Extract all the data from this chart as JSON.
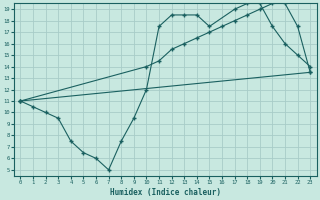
{
  "background_color": "#c8e8e0",
  "grid_color": "#a8ccc8",
  "line_color": "#1a6060",
  "xlabel": "Humidex (Indice chaleur)",
  "xlim": [
    -0.5,
    23.5
  ],
  "ylim": [
    4.5,
    19.5
  ],
  "xticks": [
    0,
    1,
    2,
    3,
    4,
    5,
    6,
    7,
    8,
    9,
    10,
    11,
    12,
    13,
    14,
    15,
    16,
    17,
    18,
    19,
    20,
    21,
    22,
    23
  ],
  "yticks": [
    5,
    6,
    7,
    8,
    9,
    10,
    11,
    12,
    13,
    14,
    15,
    16,
    17,
    18,
    19
  ],
  "line1_x": [
    0,
    1,
    2,
    3,
    4,
    5,
    6,
    7,
    8,
    9,
    10,
    11,
    12,
    13,
    14,
    15,
    17,
    18,
    19,
    20,
    21,
    22,
    23
  ],
  "line1_y": [
    11,
    10.5,
    10,
    9.5,
    7.5,
    6.5,
    6,
    5,
    7.5,
    9.5,
    12,
    17.5,
    18.5,
    18.5,
    18.5,
    17.5,
    19,
    19.5,
    19.5,
    17.5,
    16,
    15,
    14
  ],
  "line2_x": [
    0,
    10,
    11,
    12,
    13,
    14,
    15,
    16,
    17,
    18,
    19,
    20,
    21,
    22,
    23
  ],
  "line2_y": [
    11,
    14,
    14.5,
    15.5,
    16,
    16.5,
    17,
    17.5,
    18,
    18.5,
    19,
    19.5,
    19.5,
    17.5,
    13.5
  ],
  "line3_x": [
    0,
    23
  ],
  "line3_y": [
    11,
    13.5
  ]
}
